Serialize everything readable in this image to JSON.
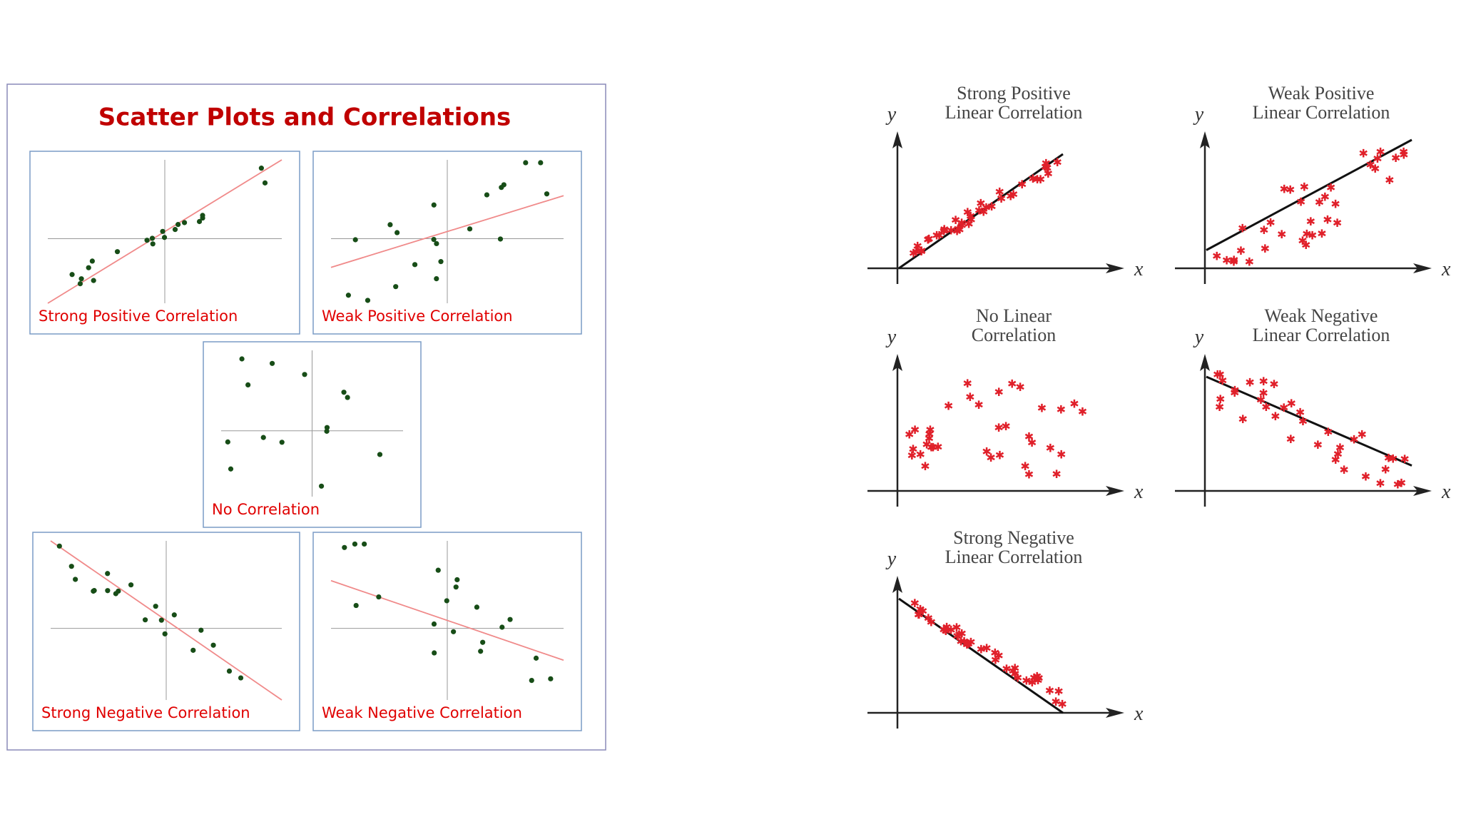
{
  "left": {
    "title": "Scatter Plots and Correlations",
    "panels": [
      {
        "label": "Strong Positive Correlation"
      },
      {
        "label": "Weak Positive Correlation"
      },
      {
        "label": "No Correlation"
      },
      {
        "label": "Strong Negative Correlation"
      },
      {
        "label": "Weak Negative Correlation"
      }
    ]
  },
  "right": {
    "panels": [
      {
        "title": [
          "Strong Positive",
          "Linear Correlation"
        ],
        "y_label": "y",
        "x_label": "x"
      },
      {
        "title": [
          "Weak Positive",
          "Linear Correlation"
        ],
        "y_label": "y",
        "x_label": "x"
      },
      {
        "title": [
          "No Linear",
          "Correlation"
        ],
        "y_label": "y",
        "x_label": "x"
      },
      {
        "title": [
          "Weak Negative",
          "Linear Correlation"
        ],
        "y_label": "y",
        "x_label": "x"
      },
      {
        "title": [
          "Strong Negative",
          "Linear Correlation"
        ],
        "y_label": "y",
        "x_label": "x"
      }
    ]
  }
}
